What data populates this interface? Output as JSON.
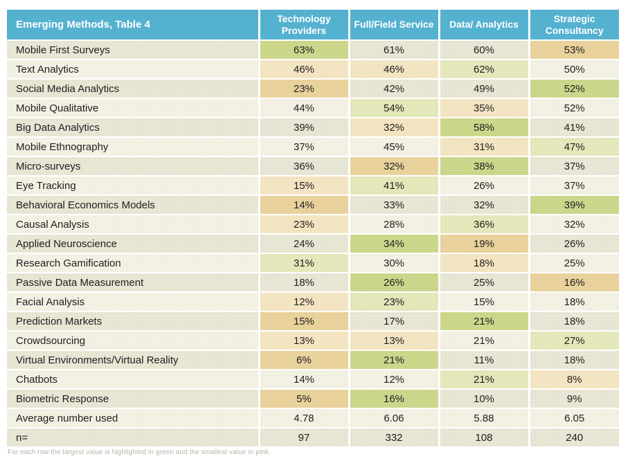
{
  "title": "Emerging Methods, Table 4",
  "footnote": "For each row the largest value is highlighted in green and the smallest value in pink.",
  "colors": {
    "header_bg": "#55b1d0",
    "header_text": "#ffffff",
    "row_odd": "#e8e6d4",
    "row_even": "#f3f1e4",
    "highlight_green_strong": "#ccd78c",
    "highlight_green_pale": "#e4e8ba",
    "highlight_tan_strong": "#e9d29c",
    "highlight_tan_pale": "#f4e5c2",
    "body_text": "#1e1e1e",
    "footnote_text": "#b5b4a8"
  },
  "chart_data": {
    "type": "table",
    "title": "Emerging Methods, Table 4",
    "columns": [
      "Technology Providers",
      "Full/Field Service",
      "Data/ Analytics",
      "Strategic Consultancy"
    ],
    "highlight_legend": {
      "green": "largest value in row",
      "pink": "smallest value in row"
    },
    "rows": [
      {
        "label": "Mobile First Surveys",
        "values": [
          "63%",
          "61%",
          "60%",
          "53%"
        ],
        "highlights": [
          "green-strong",
          null,
          null,
          "tan-strong"
        ]
      },
      {
        "label": "Text Analytics",
        "values": [
          "46%",
          "46%",
          "62%",
          "50%"
        ],
        "highlights": [
          "tan-pale",
          "tan-pale",
          "green-pale",
          null
        ]
      },
      {
        "label": "Social Media Analytics",
        "values": [
          "23%",
          "42%",
          "49%",
          "52%"
        ],
        "highlights": [
          "tan-strong",
          null,
          null,
          "green-strong"
        ]
      },
      {
        "label": "Mobile Qualitative",
        "values": [
          "44%",
          "54%",
          "35%",
          "52%"
        ],
        "highlights": [
          null,
          "green-pale",
          "tan-pale",
          null
        ]
      },
      {
        "label": "Big Data Analytics",
        "values": [
          "39%",
          "32%",
          "58%",
          "41%"
        ],
        "highlights": [
          null,
          "tan-pale",
          "green-strong",
          null
        ]
      },
      {
        "label": "Mobile Ethnography",
        "values": [
          "37%",
          "45%",
          "31%",
          "47%"
        ],
        "highlights": [
          null,
          null,
          "tan-pale",
          "green-pale"
        ]
      },
      {
        "label": "Micro-surveys",
        "values": [
          "36%",
          "32%",
          "38%",
          "37%"
        ],
        "highlights": [
          null,
          "tan-strong",
          "green-strong",
          null
        ]
      },
      {
        "label": "Eye Tracking",
        "values": [
          "15%",
          "41%",
          "26%",
          "37%"
        ],
        "highlights": [
          "tan-pale",
          "green-pale",
          null,
          null
        ]
      },
      {
        "label": "Behavioral Economics Models",
        "values": [
          "14%",
          "33%",
          "32%",
          "39%"
        ],
        "highlights": [
          "tan-strong",
          null,
          null,
          "green-strong"
        ]
      },
      {
        "label": "Causal Analysis",
        "values": [
          "23%",
          "28%",
          "36%",
          "32%"
        ],
        "highlights": [
          "tan-pale",
          null,
          "green-pale",
          null
        ]
      },
      {
        "label": "Applied Neuroscience",
        "values": [
          "24%",
          "34%",
          "19%",
          "26%"
        ],
        "highlights": [
          null,
          "green-strong",
          "tan-strong",
          null
        ]
      },
      {
        "label": "Research Gamification",
        "values": [
          "31%",
          "30%",
          "18%",
          "25%"
        ],
        "highlights": [
          "green-pale",
          null,
          "tan-pale",
          null
        ]
      },
      {
        "label": "Passive Data Measurement",
        "values": [
          "18%",
          "26%",
          "25%",
          "16%"
        ],
        "highlights": [
          null,
          "green-strong",
          null,
          "tan-strong"
        ]
      },
      {
        "label": "Facial Analysis",
        "values": [
          "12%",
          "23%",
          "15%",
          "18%"
        ],
        "highlights": [
          "tan-pale",
          "green-pale",
          null,
          null
        ]
      },
      {
        "label": "Prediction Markets",
        "values": [
          "15%",
          "17%",
          "21%",
          "18%"
        ],
        "highlights": [
          "tan-strong",
          null,
          "green-strong",
          null
        ]
      },
      {
        "label": "Crowdsourcing",
        "values": [
          "13%",
          "13%",
          "21%",
          "27%"
        ],
        "highlights": [
          "tan-pale",
          "tan-pale",
          null,
          "green-pale"
        ]
      },
      {
        "label": "Virtual Environments/Virtual Reality",
        "values": [
          "6%",
          "21%",
          "11%",
          "18%"
        ],
        "highlights": [
          "tan-strong",
          "green-strong",
          null,
          null
        ]
      },
      {
        "label": "Chatbots",
        "values": [
          "14%",
          "12%",
          "21%",
          "8%"
        ],
        "highlights": [
          null,
          null,
          "green-pale",
          "tan-pale"
        ]
      },
      {
        "label": "Biometric Response",
        "values": [
          "5%",
          "16%",
          "10%",
          "9%"
        ],
        "highlights": [
          "tan-strong",
          "green-strong",
          null,
          null
        ]
      },
      {
        "label": "Average number used",
        "values": [
          "4.78",
          "6.06",
          "5.88",
          "6.05"
        ],
        "highlights": [
          null,
          null,
          null,
          null
        ]
      },
      {
        "label": "n=",
        "values": [
          "97",
          "332",
          "108",
          "240"
        ],
        "highlights": [
          null,
          null,
          null,
          null
        ]
      }
    ]
  }
}
